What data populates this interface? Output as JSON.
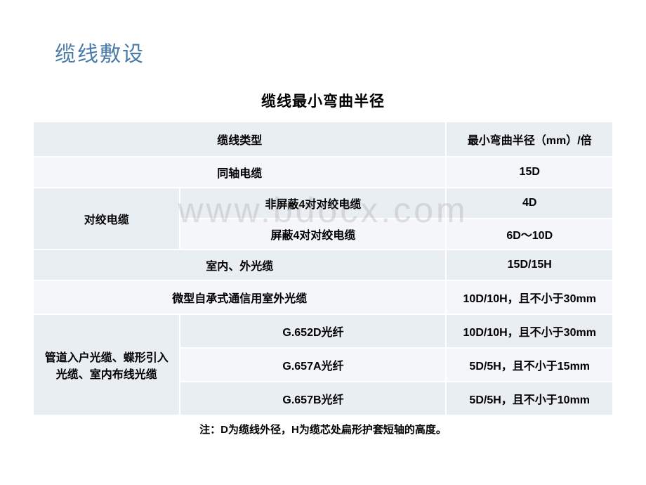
{
  "page_title": "缆线敷设",
  "table_title": "缆线最小弯曲半径",
  "watermark": "www.bdocx.com",
  "headers": {
    "type": "缆线类型",
    "radius": "最小弯曲半径（mm）/倍"
  },
  "rows": {
    "r1": {
      "type": "同轴电缆",
      "radius": "15D"
    },
    "r2": {
      "group": "对绞电缆",
      "sub": "非屏蔽4对对绞电缆",
      "radius": "4D"
    },
    "r3": {
      "sub": "屏蔽4对对绞电缆",
      "radius": "6D～10D"
    },
    "r4": {
      "type": "室内、外光缆",
      "radius": "15D/15H"
    },
    "r5": {
      "type": "微型自承式通信用室外光缆",
      "radius": "10D/10H，且不小于30mm"
    },
    "r6": {
      "group": "管道入户光缆、蝶形引入光缆、室内布线光缆",
      "sub": "G.652D光纤",
      "radius": "10D/10H，且不小于30mm"
    },
    "r7": {
      "sub": "G.657A光纤",
      "radius": "5D/5H，且不小于15mm"
    },
    "r8": {
      "sub": "G.657B光纤",
      "radius": "5D/5H，且不小于10mm"
    }
  },
  "footnote": "注：D为缆线外径，H为缆芯处扁形护套短轴的高度。"
}
